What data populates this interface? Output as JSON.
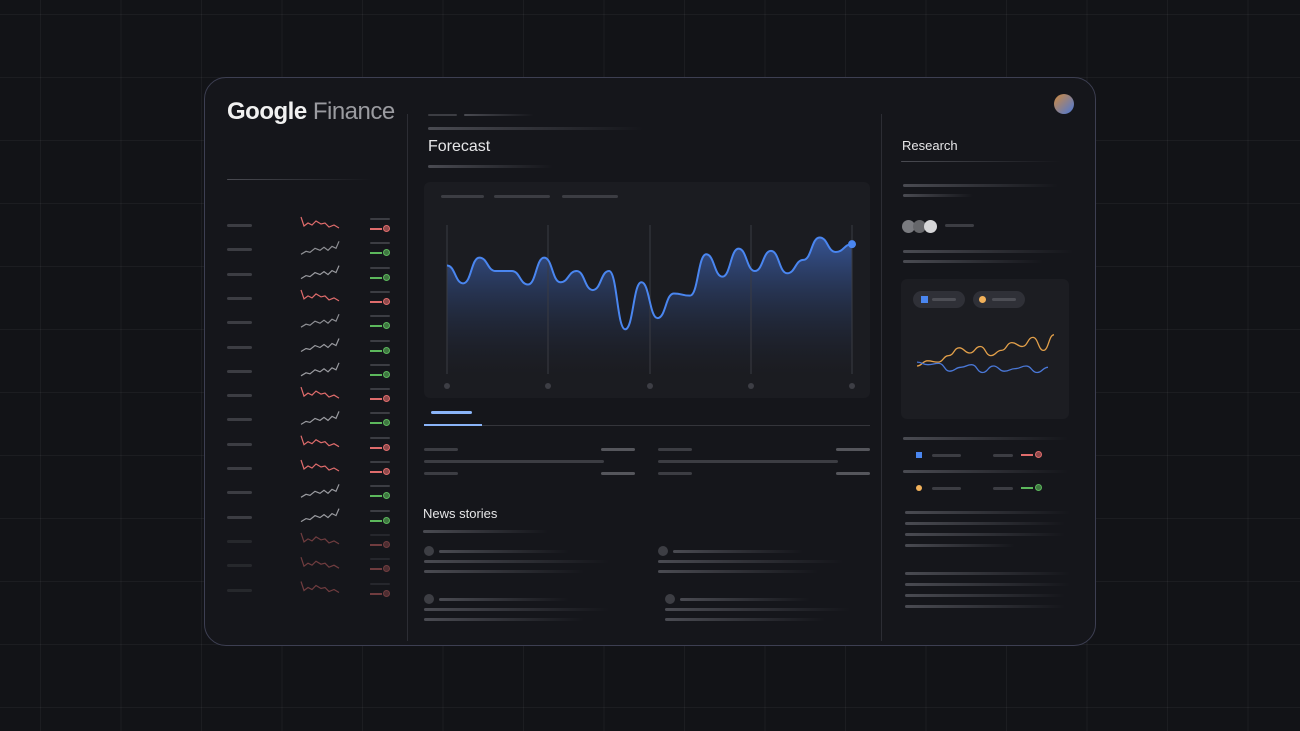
{
  "app": {
    "logo_google": "Google",
    "logo_finance": "Finance"
  },
  "main": {
    "title": "Forecast",
    "news_title": "News stories"
  },
  "research": {
    "title": "Research",
    "legend": [
      {
        "icon": "square",
        "color": "#4a86f0"
      },
      {
        "icon": "circle",
        "color": "#f2b15a"
      }
    ],
    "rows": [
      {
        "icon": "square",
        "color": "#4a86f0",
        "status": "down"
      },
      {
        "icon": "circle",
        "color": "#f2b15a",
        "status": "up"
      }
    ]
  },
  "colors": {
    "accent": "#4a86f0",
    "up": "#5cb85c",
    "down": "#e06c6c",
    "neutral": "#8e8f94",
    "orange": "#e3a04a"
  },
  "watchlist": [
    {
      "trend": "down"
    },
    {
      "trend": "up"
    },
    {
      "trend": "up"
    },
    {
      "trend": "down"
    },
    {
      "trend": "up"
    },
    {
      "trend": "up"
    },
    {
      "trend": "up"
    },
    {
      "trend": "down"
    },
    {
      "trend": "up"
    },
    {
      "trend": "down"
    },
    {
      "trend": "down"
    },
    {
      "trend": "up"
    },
    {
      "trend": "up"
    },
    {
      "trend": "down"
    },
    {
      "trend": "down"
    },
    {
      "trend": "down"
    }
  ],
  "chart_data": {
    "type": "area",
    "series": [
      {
        "values": [
          88,
          72,
          95,
          83,
          83,
          71,
          95,
          73,
          83,
          66,
          83,
          31,
          73,
          41,
          63,
          61,
          98,
          78,
          103,
          83,
          101,
          81,
          93,
          113,
          100,
          107
        ]
      }
    ]
  },
  "research_chart": {
    "type": "line",
    "series": [
      {
        "color": "#e3a04a",
        "values": [
          10,
          14,
          13,
          18,
          24,
          20,
          25,
          18,
          22,
          28,
          25,
          32,
          22,
          34
        ]
      },
      {
        "color": "#4a78d8",
        "values": [
          13,
          11,
          12,
          6,
          9,
          11,
          5,
          10,
          6,
          8,
          10,
          5,
          9
        ]
      }
    ]
  }
}
